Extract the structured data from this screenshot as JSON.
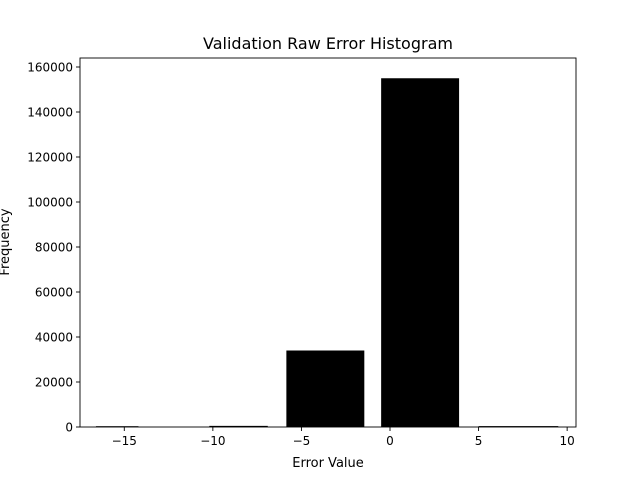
{
  "chart_data": {
    "type": "bar",
    "title": "Validation Raw Error Histogram",
    "xlabel": "Error Value",
    "ylabel": "Frequency",
    "xlim": [
      -17.5,
      10.5
    ],
    "ylim": [
      0,
      164000
    ],
    "xticks": [
      -15,
      -10,
      -5,
      0,
      5,
      10
    ],
    "xtick_labels": [
      "−15",
      "−10",
      "−5",
      "0",
      "5",
      "10"
    ],
    "yticks": [
      0,
      20000,
      40000,
      60000,
      80000,
      100000,
      120000,
      140000,
      160000
    ],
    "ytick_labels": [
      "0",
      "20000",
      "40000",
      "60000",
      "80000",
      "100000",
      "120000",
      "140000",
      "160000"
    ],
    "grid": false,
    "legend": "none",
    "bar_color": "#000000",
    "series": [
      {
        "bin_ranges": [
          [
            -16.6,
            -14.2
          ],
          [
            -10.2,
            -6.9
          ],
          [
            -5.85,
            -1.45
          ],
          [
            -0.5,
            3.9
          ],
          [
            5.0,
            9.5
          ]
        ],
        "counts": [
          200,
          500,
          34000,
          155000,
          400
        ]
      }
    ]
  }
}
